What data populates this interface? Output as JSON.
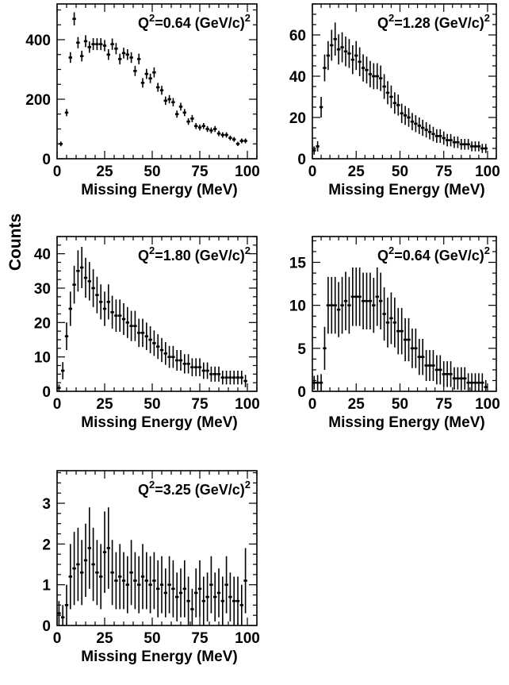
{
  "ylabel": "Counts",
  "chart_data": [
    {
      "type": "scatter",
      "label_html": {
        "pre": "Q",
        "sup1": "2",
        "mid": "=0.64 (GeV/c)",
        "sup2": "2"
      },
      "xlabel": "Missing Energy (MeV)",
      "xlim": [
        0,
        105
      ],
      "ylim": [
        0,
        520
      ],
      "xticks": [
        0,
        25,
        50,
        75,
        100
      ],
      "yticks": [
        0,
        200,
        400
      ],
      "x": [
        2,
        5,
        7,
        9,
        11,
        13,
        15,
        17,
        19,
        21,
        23,
        25,
        27,
        29,
        31,
        33,
        35,
        37,
        39,
        41,
        43,
        45,
        47,
        49,
        51,
        53,
        55,
        57,
        59,
        61,
        63,
        65,
        67,
        69,
        71,
        73,
        75,
        77,
        79,
        81,
        83,
        85,
        87,
        89,
        91,
        93,
        95,
        97,
        99
      ],
      "y": [
        50,
        155,
        340,
        470,
        390,
        345,
        395,
        375,
        385,
        385,
        385,
        380,
        350,
        385,
        370,
        335,
        355,
        350,
        340,
        295,
        335,
        255,
        285,
        270,
        290,
        240,
        230,
        195,
        200,
        190,
        150,
        175,
        155,
        125,
        135,
        110,
        105,
        110,
        100,
        95,
        100,
        85,
        80,
        80,
        70,
        65,
        50,
        60,
        60
      ],
      "err": [
        8,
        12,
        18,
        22,
        19,
        18,
        20,
        19,
        20,
        20,
        20,
        19,
        18,
        19,
        19,
        18,
        18,
        18,
        18,
        17,
        18,
        16,
        17,
        16,
        17,
        15,
        15,
        14,
        14,
        14,
        12,
        13,
        12,
        11,
        12,
        10,
        10,
        10,
        10,
        10,
        10,
        9,
        9,
        9,
        8,
        8,
        7,
        8,
        8
      ]
    },
    {
      "type": "scatter",
      "label_html": {
        "pre": "Q",
        "sup1": "2",
        "mid": "=1.28 (GeV/c)",
        "sup2": "2"
      },
      "xlabel": "Missing Energy (MeV)",
      "xlim": [
        0,
        105
      ],
      "ylim": [
        0,
        75
      ],
      "xticks": [
        0,
        25,
        50,
        75,
        100
      ],
      "yticks": [
        0,
        20,
        40,
        60
      ],
      "x": [
        1,
        3,
        5,
        7,
        9,
        11,
        13,
        15,
        17,
        19,
        21,
        23,
        25,
        27,
        29,
        31,
        33,
        35,
        37,
        39,
        41,
        43,
        45,
        47,
        49,
        51,
        53,
        55,
        57,
        59,
        61,
        63,
        65,
        67,
        69,
        71,
        73,
        75,
        77,
        79,
        81,
        83,
        85,
        87,
        89,
        91,
        93,
        95,
        97,
        99
      ],
      "y": [
        4,
        6,
        25,
        44,
        50,
        55,
        58,
        53,
        54,
        52,
        51,
        48,
        50,
        47,
        44,
        43,
        41,
        40,
        40,
        39,
        35,
        32,
        30,
        27,
        26,
        22,
        21,
        20,
        18,
        17,
        16,
        15,
        14,
        13,
        12,
        11,
        11,
        10,
        9,
        9,
        8,
        8,
        7,
        7,
        7,
        6,
        6,
        6,
        5,
        5
      ],
      "err": [
        2,
        2.5,
        5,
        6.5,
        7,
        7.5,
        8,
        7.3,
        7.3,
        7.2,
        7,
        7,
        7,
        7,
        6.6,
        6.5,
        6.4,
        6.3,
        6.3,
        6.2,
        6,
        5.6,
        5.5,
        5.2,
        5.1,
        4.7,
        4.6,
        4.5,
        4.2,
        4.1,
        4,
        3.9,
        3.7,
        3.6,
        3.5,
        3.3,
        3.3,
        3.2,
        3,
        3,
        2.8,
        2.8,
        2.6,
        2.6,
        2.6,
        2.4,
        2.4,
        2.4,
        2.2,
        2.2
      ]
    },
    {
      "type": "scatter",
      "label_html": {
        "pre": "Q",
        "sup1": "2",
        "mid": "=1.80 (GeV/c)",
        "sup2": "2"
      },
      "xlabel": "Missing Energy (MeV)",
      "xlim": [
        0,
        105
      ],
      "ylim": [
        0,
        45
      ],
      "xticks": [
        0,
        25,
        50,
        75,
        100
      ],
      "yticks": [
        0,
        10,
        20,
        30,
        40
      ],
      "x": [
        1,
        3,
        5,
        7,
        9,
        11,
        13,
        15,
        17,
        19,
        21,
        23,
        25,
        27,
        29,
        31,
        33,
        35,
        37,
        39,
        41,
        43,
        45,
        47,
        49,
        51,
        53,
        55,
        57,
        59,
        61,
        63,
        65,
        67,
        69,
        71,
        73,
        75,
        77,
        79,
        81,
        83,
        85,
        87,
        89,
        91,
        93,
        95,
        97,
        99
      ],
      "y": [
        1,
        6,
        16,
        24,
        31,
        35,
        36,
        33,
        32,
        30,
        28,
        26,
        24,
        26,
        23,
        22,
        22,
        21,
        20,
        19,
        19,
        17,
        17,
        16,
        15,
        14,
        13,
        12,
        11,
        10,
        10,
        9,
        9,
        8,
        8,
        7,
        7,
        7,
        6,
        6,
        5,
        5,
        5,
        4,
        4,
        4,
        4,
        4,
        4,
        3
      ],
      "err": [
        1,
        2.5,
        4,
        5,
        5.5,
        6,
        6,
        5.8,
        5.6,
        5.5,
        5.3,
        5.1,
        5,
        5.1,
        4.8,
        4.7,
        4.7,
        4.6,
        4.5,
        4.4,
        4.4,
        4.1,
        4.1,
        4,
        3.9,
        3.7,
        3.6,
        3.5,
        3.3,
        3.2,
        3.2,
        3,
        3,
        2.8,
        2.8,
        2.6,
        2.6,
        2.6,
        2.4,
        2.4,
        2.2,
        2.2,
        2.2,
        2,
        2,
        2,
        2,
        2,
        2,
        1.8
      ]
    },
    {
      "type": "scatter",
      "label_html": {
        "pre": "Q",
        "sup1": "2",
        "mid": "=0.64 (GeV/c)",
        "sup2": "2"
      },
      "xlabel": "Missing Energy (MeV)",
      "xlim": [
        0,
        105
      ],
      "ylim": [
        0,
        18
      ],
      "xticks": [
        0,
        25,
        50,
        75,
        100
      ],
      "yticks": [
        0,
        5,
        10,
        15
      ],
      "x": [
        1,
        3,
        5,
        7,
        9,
        11,
        13,
        15,
        17,
        19,
        21,
        23,
        25,
        27,
        29,
        31,
        33,
        35,
        37,
        39,
        41,
        43,
        45,
        47,
        49,
        51,
        53,
        55,
        57,
        59,
        61,
        63,
        65,
        67,
        69,
        71,
        73,
        75,
        77,
        79,
        81,
        83,
        85,
        87,
        89,
        91,
        93,
        95,
        97,
        99
      ],
      "y": [
        1,
        1,
        1,
        5,
        10,
        10,
        10,
        9.5,
        10,
        10.5,
        10,
        11,
        11,
        11,
        10.5,
        10.5,
        10.5,
        10,
        11,
        10.5,
        9,
        8,
        8.5,
        8,
        7,
        7,
        6,
        6,
        5,
        5,
        4,
        4,
        3,
        3,
        3,
        2.5,
        2.5,
        2,
        2,
        2,
        1.5,
        1.5,
        1.5,
        1.5,
        1,
        1,
        1,
        1,
        1,
        0.5
      ],
      "err": [
        0.8,
        0.9,
        1,
        2.5,
        3.3,
        3.3,
        3.3,
        3.2,
        3.3,
        3.4,
        3.3,
        3.4,
        3.4,
        3.4,
        3.3,
        3.3,
        3.3,
        3.2,
        3.4,
        3.3,
        3.1,
        2.9,
        3,
        2.9,
        2.7,
        2.7,
        2.5,
        2.5,
        2.3,
        2.3,
        2.1,
        2.1,
        1.8,
        1.8,
        1.8,
        1.7,
        1.7,
        1.5,
        1.5,
        1.5,
        1.3,
        1.3,
        1.3,
        1.3,
        1.1,
        1.1,
        1.1,
        1.1,
        1.1,
        0.8
      ]
    },
    {
      "type": "scatter",
      "label_html": {
        "pre": "Q",
        "sup1": "2",
        "mid": "=3.25 (GeV/c)",
        "sup2": "2"
      },
      "xlabel": "Missing Energy (MeV)",
      "xlim": [
        0,
        105
      ],
      "ylim": [
        0,
        3.8
      ],
      "xticks": [
        0,
        25,
        50,
        75,
        100
      ],
      "yticks": [
        0,
        1,
        2,
        3
      ],
      "x": [
        1,
        3,
        5,
        7,
        9,
        11,
        13,
        15,
        17,
        19,
        21,
        23,
        25,
        27,
        29,
        31,
        33,
        35,
        37,
        39,
        41,
        43,
        45,
        47,
        49,
        51,
        53,
        55,
        57,
        59,
        61,
        63,
        65,
        67,
        69,
        71,
        73,
        75,
        77,
        79,
        81,
        83,
        85,
        87,
        89,
        91,
        93,
        95,
        97,
        99
      ],
      "y": [
        0.3,
        0.2,
        0.5,
        1.2,
        1.4,
        1.5,
        1.3,
        1.6,
        1.9,
        1.5,
        1.3,
        1.2,
        1.8,
        1.9,
        1.3,
        1.1,
        1.2,
        1.1,
        1.0,
        1.3,
        1.1,
        1.0,
        1.2,
        1.1,
        1.0,
        1.1,
        0.9,
        1.0,
        0.8,
        1.0,
        0.9,
        0.7,
        0.8,
        0.9,
        0.6,
        0.4,
        0.8,
        0.9,
        0.6,
        0.7,
        1.0,
        0.7,
        0.8,
        0.6,
        1.0,
        0.7,
        0.6,
        0.6,
        0.5,
        1.1
      ],
      "err": [
        0.3,
        0.3,
        0.5,
        0.8,
        0.9,
        0.9,
        0.8,
        0.9,
        1.0,
        0.9,
        0.8,
        0.8,
        1.0,
        1.0,
        0.8,
        0.7,
        0.8,
        0.7,
        0.7,
        0.8,
        0.7,
        0.7,
        0.8,
        0.7,
        0.7,
        0.7,
        0.7,
        0.7,
        0.6,
        0.7,
        0.7,
        0.6,
        0.6,
        0.7,
        0.6,
        0.5,
        0.6,
        0.7,
        0.6,
        0.6,
        0.7,
        0.6,
        0.6,
        0.6,
        0.7,
        0.6,
        0.6,
        0.6,
        0.5,
        0.8
      ]
    }
  ]
}
